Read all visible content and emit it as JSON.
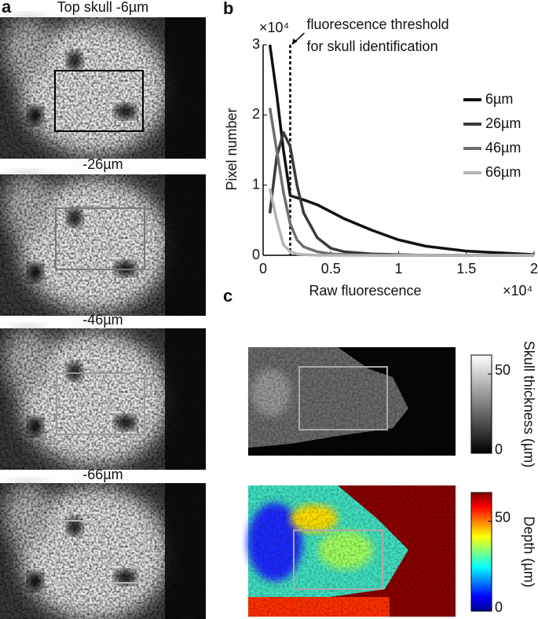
{
  "panel_labels": {
    "a": "a",
    "b": "b",
    "c": "c"
  },
  "images": [
    {
      "title": "Top skull -6µm"
    },
    {
      "title": "-26µm"
    },
    {
      "title": "-46µm"
    },
    {
      "title": "-66µm"
    }
  ],
  "chart_data": {
    "type": "line",
    "xlabel": "Raw fluorescence",
    "ylabel": "Pixel number",
    "x_multiplier": "×10⁴",
    "y_multiplier": "×10⁴",
    "x": [
      0.05,
      0.1,
      0.15,
      0.2,
      0.25,
      0.3,
      0.4,
      0.5,
      0.6,
      0.8,
      1.0,
      1.2,
      1.5,
      2.0
    ],
    "series": [
      {
        "name": "6µm",
        "color": "#111111",
        "values": [
          3.0,
          2.3,
          1.5,
          0.85,
          0.82,
          0.79,
          0.72,
          0.62,
          0.52,
          0.36,
          0.22,
          0.13,
          0.06,
          0.01
        ]
      },
      {
        "name": "26µm",
        "color": "#3a3a3a",
        "values": [
          0.6,
          1.4,
          1.75,
          1.55,
          1.0,
          0.6,
          0.25,
          0.1,
          0.05,
          0.02,
          0.01,
          0,
          0,
          0
        ]
      },
      {
        "name": "46µm",
        "color": "#6e6e6e",
        "values": [
          2.1,
          1.5,
          0.9,
          0.45,
          0.22,
          0.12,
          0.05,
          0.02,
          0.01,
          0,
          0,
          0,
          0,
          0
        ]
      },
      {
        "name": "66µm",
        "color": "#b4b4b4",
        "values": [
          0.95,
          0.5,
          0.15,
          0.05,
          0.02,
          0.01,
          0,
          0,
          0,
          0,
          0,
          0,
          0,
          0
        ]
      }
    ],
    "xlim": [
      0,
      2
    ],
    "ylim": [
      0,
      3
    ],
    "xticks": [
      0,
      0.5,
      1,
      1.5,
      2
    ],
    "yticks": [
      0,
      1,
      2,
      3
    ],
    "legend": "right",
    "threshold": {
      "x": 0.2,
      "label_lines": [
        "fluorescence threshold",
        "for skull identification"
      ]
    }
  },
  "maps": [
    {
      "colorbar_label": "Skull thickness (µm)",
      "clim": [
        0,
        62
      ],
      "ticks": [
        0,
        50
      ]
    },
    {
      "colorbar_label": "Depth (µm)",
      "clim": [
        0,
        66
      ],
      "ticks": [
        0,
        50
      ]
    }
  ]
}
